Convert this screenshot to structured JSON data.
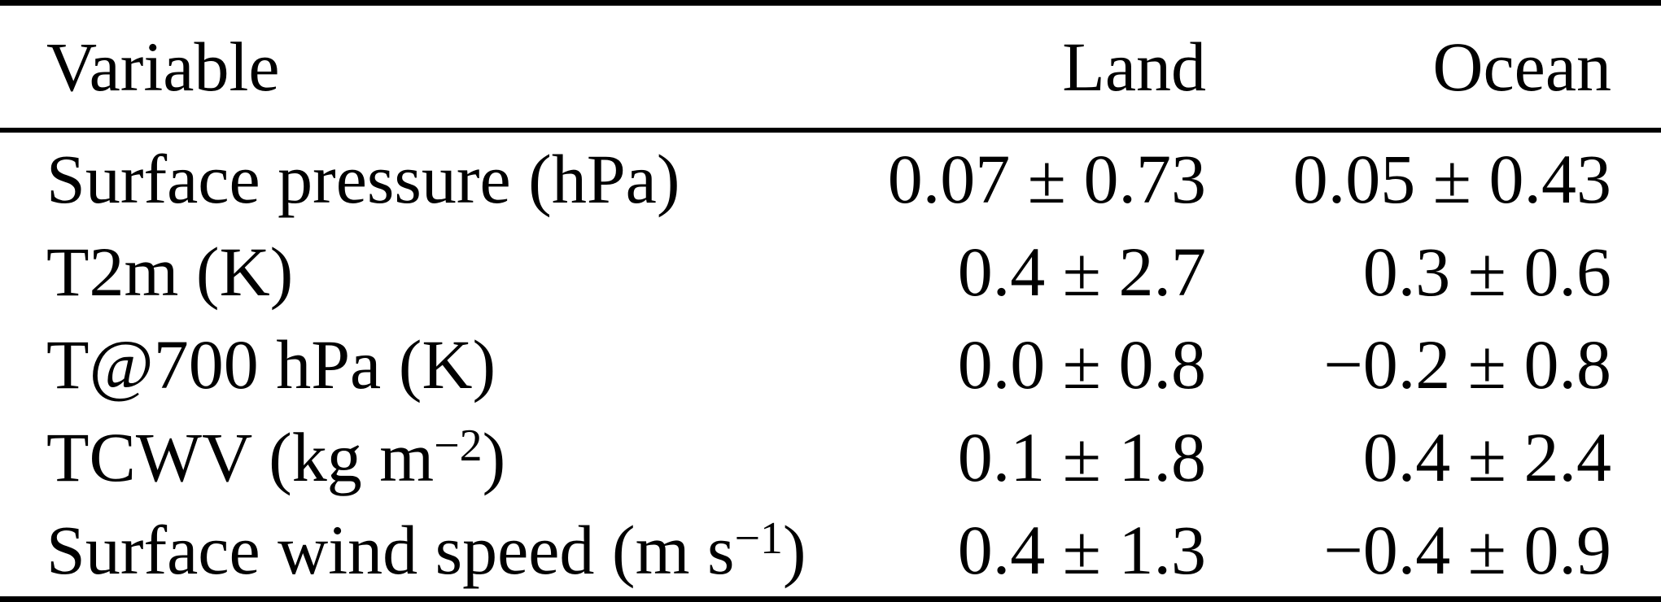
{
  "table": {
    "colors": {
      "text": "#000000",
      "background": "#ffffff",
      "rule": "#000000"
    },
    "columns": [
      {
        "label": "Variable",
        "align": "left"
      },
      {
        "label": "Land",
        "align": "right"
      },
      {
        "label": "Ocean",
        "align": "right"
      }
    ],
    "rows": [
      {
        "cells": [
          [
            {
              "t": "Surface pressure (hPa)"
            }
          ],
          [
            {
              "t": "0.07 ± 0.73"
            }
          ],
          [
            {
              "t": "0.05 ± 0.43"
            }
          ]
        ]
      },
      {
        "cells": [
          [
            {
              "t": "T2m (K)"
            }
          ],
          [
            {
              "t": "0.4 ± 2.7"
            }
          ],
          [
            {
              "t": "0.3 ± 0.6"
            }
          ]
        ]
      },
      {
        "cells": [
          [
            {
              "t": "T@700 hPa (K)"
            }
          ],
          [
            {
              "t": "0.0 ± 0.8"
            }
          ],
          [
            {
              "t": "−0.2 ± 0.8"
            }
          ]
        ]
      },
      {
        "cells": [
          [
            {
              "t": "TCWV (kg m"
            },
            {
              "t": "−2",
              "sup": true
            },
            {
              "t": ")"
            }
          ],
          [
            {
              "t": "0.1 ± 1.8"
            }
          ],
          [
            {
              "t": "0.4 ± 2.4"
            }
          ]
        ]
      },
      {
        "cells": [
          [
            {
              "t": "Surface wind speed (m s"
            },
            {
              "t": "−1",
              "sup": true
            },
            {
              "t": ")"
            }
          ],
          [
            {
              "t": "0.4 ± 1.3"
            }
          ],
          [
            {
              "t": "−0.4 ± 0.9"
            }
          ]
        ]
      }
    ]
  }
}
